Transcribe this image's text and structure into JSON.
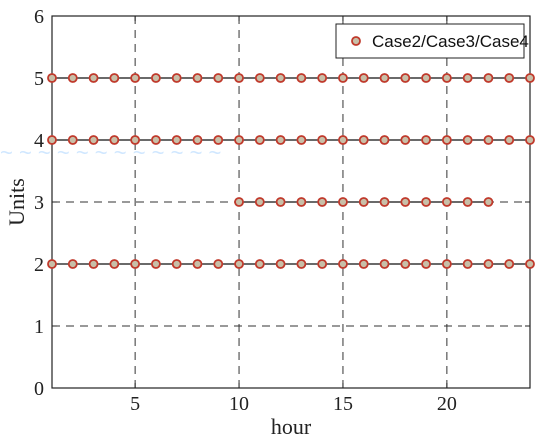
{
  "chart_data": {
    "type": "scatter",
    "title": "",
    "xlabel": "hour",
    "ylabel": "Units",
    "xlim": [
      1,
      24
    ],
    "ylim": [
      0,
      6
    ],
    "x_ticks": [
      5,
      10,
      15,
      20
    ],
    "y_ticks": [
      0,
      1,
      2,
      3,
      4,
      5,
      6
    ],
    "grid": "dashed",
    "legend_position": "top-right",
    "legend": [
      "Case2/Case3/Case4"
    ],
    "marker_color": "#c0392b",
    "marker_fill": "#c8bfa8",
    "series": [
      {
        "name": "Case2/Case3/Case4",
        "points": [
          [
            1,
            5
          ],
          [
            2,
            5
          ],
          [
            3,
            5
          ],
          [
            4,
            5
          ],
          [
            5,
            5
          ],
          [
            6,
            5
          ],
          [
            7,
            5
          ],
          [
            8,
            5
          ],
          [
            9,
            5
          ],
          [
            10,
            5
          ],
          [
            11,
            5
          ],
          [
            12,
            5
          ],
          [
            13,
            5
          ],
          [
            14,
            5
          ],
          [
            15,
            5
          ],
          [
            16,
            5
          ],
          [
            17,
            5
          ],
          [
            18,
            5
          ],
          [
            19,
            5
          ],
          [
            20,
            5
          ],
          [
            21,
            5
          ],
          [
            22,
            5
          ],
          [
            23,
            5
          ],
          [
            24,
            5
          ],
          [
            1,
            4
          ],
          [
            2,
            4
          ],
          [
            3,
            4
          ],
          [
            4,
            4
          ],
          [
            5,
            4
          ],
          [
            6,
            4
          ],
          [
            7,
            4
          ],
          [
            8,
            4
          ],
          [
            9,
            4
          ],
          [
            10,
            4
          ],
          [
            11,
            4
          ],
          [
            12,
            4
          ],
          [
            13,
            4
          ],
          [
            14,
            4
          ],
          [
            15,
            4
          ],
          [
            16,
            4
          ],
          [
            17,
            4
          ],
          [
            18,
            4
          ],
          [
            19,
            4
          ],
          [
            20,
            4
          ],
          [
            21,
            4
          ],
          [
            22,
            4
          ],
          [
            23,
            4
          ],
          [
            24,
            4
          ],
          [
            10,
            3
          ],
          [
            11,
            3
          ],
          [
            12,
            3
          ],
          [
            13,
            3
          ],
          [
            14,
            3
          ],
          [
            15,
            3
          ],
          [
            16,
            3
          ],
          [
            17,
            3
          ],
          [
            18,
            3
          ],
          [
            19,
            3
          ],
          [
            20,
            3
          ],
          [
            21,
            3
          ],
          [
            22,
            3
          ],
          [
            1,
            2
          ],
          [
            2,
            2
          ],
          [
            3,
            2
          ],
          [
            4,
            2
          ],
          [
            5,
            2
          ],
          [
            6,
            2
          ],
          [
            7,
            2
          ],
          [
            8,
            2
          ],
          [
            9,
            2
          ],
          [
            10,
            2
          ],
          [
            11,
            2
          ],
          [
            12,
            2
          ],
          [
            13,
            2
          ],
          [
            14,
            2
          ],
          [
            15,
            2
          ],
          [
            16,
            2
          ],
          [
            17,
            2
          ],
          [
            18,
            2
          ],
          [
            19,
            2
          ],
          [
            20,
            2
          ],
          [
            21,
            2
          ],
          [
            22,
            2
          ],
          [
            23,
            2
          ],
          [
            24,
            2
          ]
        ]
      }
    ]
  }
}
